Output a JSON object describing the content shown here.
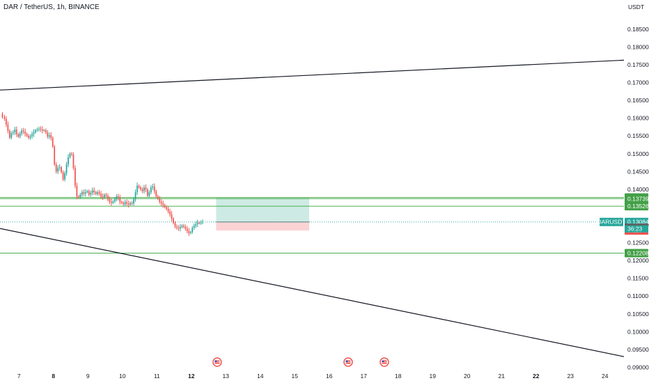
{
  "header": {
    "symbol_title": "DAR / TetherUS, 1h, BINANCE"
  },
  "colors": {
    "up": "#26a69a",
    "down": "#ef5350",
    "trendline": "#131722",
    "level_line": "#4caf50",
    "price_line": "#26a69a",
    "target_zone": "#cdebe4",
    "stop_zone": "#fbd3d5",
    "tag_green": "#43a047",
    "tag_teal": "#26a69a",
    "tag_red": "#ef5350",
    "tag_dark": "#616161"
  },
  "chart_data": {
    "type": "candlestick",
    "currency_label": "USDT",
    "ylim": [
      0.0897,
      0.1932
    ],
    "y_ticks": [
      "0.18500",
      "0.18000",
      "0.17500",
      "0.17000",
      "0.16500",
      "0.16000",
      "0.15500",
      "0.15000",
      "0.14500",
      "0.14000",
      "0.13500",
      "0.13000",
      "0.12500",
      "0.12000",
      "0.11500",
      "0.11000",
      "0.10500",
      "0.10000",
      "0.09500",
      "0.09000"
    ],
    "x_ticks": [
      {
        "label": "7",
        "x": 7,
        "bold": false
      },
      {
        "label": "8",
        "x": 8,
        "bold": true
      },
      {
        "label": "9",
        "x": 9,
        "bold": false
      },
      {
        "label": "10",
        "x": 10,
        "bold": false
      },
      {
        "label": "11",
        "x": 11,
        "bold": false
      },
      {
        "label": "12",
        "x": 12,
        "bold": true
      },
      {
        "label": "13",
        "x": 13,
        "bold": false
      },
      {
        "label": "14",
        "x": 14,
        "bold": false
      },
      {
        "label": "15",
        "x": 15,
        "bold": false
      },
      {
        "label": "16",
        "x": 16,
        "bold": false
      },
      {
        "label": "17",
        "x": 17,
        "bold": false
      },
      {
        "label": "18",
        "x": 18,
        "bold": false
      },
      {
        "label": "19",
        "x": 19,
        "bold": false
      },
      {
        "label": "20",
        "x": 20,
        "bold": false
      },
      {
        "label": "21",
        "x": 21,
        "bold": false
      },
      {
        "label": "22",
        "x": 22,
        "bold": true
      },
      {
        "label": "23",
        "x": 23,
        "bold": false
      },
      {
        "label": "24",
        "x": 24,
        "bold": false
      }
    ],
    "xlim": [
      6.45,
      24.55
    ],
    "candle_points": [
      [
        6.47,
        0.1612
      ],
      [
        6.52,
        0.1603
      ],
      [
        6.58,
        0.1598
      ],
      [
        6.63,
        0.1582
      ],
      [
        6.68,
        0.1565
      ],
      [
        6.73,
        0.1545
      ],
      [
        6.78,
        0.1558
      ],
      [
        6.83,
        0.156
      ],
      [
        6.88,
        0.1568
      ],
      [
        6.93,
        0.1555
      ],
      [
        6.98,
        0.1548
      ],
      [
        7.03,
        0.1557
      ],
      [
        7.08,
        0.1565
      ],
      [
        7.13,
        0.1562
      ],
      [
        7.18,
        0.1556
      ],
      [
        7.23,
        0.155
      ],
      [
        7.28,
        0.1545
      ],
      [
        7.33,
        0.1549
      ],
      [
        7.38,
        0.1555
      ],
      [
        7.43,
        0.156
      ],
      [
        7.48,
        0.1566
      ],
      [
        7.53,
        0.1568
      ],
      [
        7.58,
        0.157
      ],
      [
        7.63,
        0.1568
      ],
      [
        7.68,
        0.1565
      ],
      [
        7.73,
        0.1566
      ],
      [
        7.78,
        0.156
      ],
      [
        7.83,
        0.1548
      ],
      [
        7.88,
        0.1552
      ],
      [
        7.93,
        0.1545
      ],
      [
        7.98,
        0.152
      ],
      [
        8.03,
        0.147
      ],
      [
        8.08,
        0.145
      ],
      [
        8.13,
        0.146
      ],
      [
        8.18,
        0.1462
      ],
      [
        8.23,
        0.1448
      ],
      [
        8.28,
        0.1428
      ],
      [
        8.33,
        0.1445
      ],
      [
        8.38,
        0.147
      ],
      [
        8.43,
        0.149
      ],
      [
        8.48,
        0.15
      ],
      [
        8.53,
        0.1498
      ],
      [
        8.58,
        0.146
      ],
      [
        8.63,
        0.141
      ],
      [
        8.68,
        0.138
      ],
      [
        8.73,
        0.1378
      ],
      [
        8.78,
        0.1385
      ],
      [
        8.83,
        0.1392
      ],
      [
        8.88,
        0.1388
      ],
      [
        8.93,
        0.1392
      ],
      [
        8.98,
        0.1395
      ],
      [
        9.03,
        0.1385
      ],
      [
        9.08,
        0.139
      ],
      [
        9.13,
        0.1397
      ],
      [
        9.18,
        0.1392
      ],
      [
        9.23,
        0.1387
      ],
      [
        9.28,
        0.1392
      ],
      [
        9.33,
        0.1388
      ],
      [
        9.38,
        0.138
      ],
      [
        9.43,
        0.1378
      ],
      [
        9.48,
        0.1385
      ],
      [
        9.53,
        0.1382
      ],
      [
        9.58,
        0.1372
      ],
      [
        9.63,
        0.1365
      ],
      [
        9.68,
        0.1362
      ],
      [
        9.73,
        0.1366
      ],
      [
        9.78,
        0.1372
      ],
      [
        9.83,
        0.138
      ],
      [
        9.88,
        0.1376
      ],
      [
        9.93,
        0.1365
      ],
      [
        9.98,
        0.1362
      ],
      [
        10.03,
        0.1358
      ],
      [
        10.08,
        0.1364
      ],
      [
        10.13,
        0.136
      ],
      [
        10.18,
        0.1357
      ],
      [
        10.23,
        0.1362
      ],
      [
        10.28,
        0.136
      ],
      [
        10.33,
        0.1372
      ],
      [
        10.38,
        0.1392
      ],
      [
        10.43,
        0.141
      ],
      [
        10.48,
        0.1405
      ],
      [
        10.53,
        0.14
      ],
      [
        10.58,
        0.1395
      ],
      [
        10.63,
        0.1405
      ],
      [
        10.68,
        0.14
      ],
      [
        10.73,
        0.1382
      ],
      [
        10.78,
        0.1392
      ],
      [
        10.83,
        0.1405
      ],
      [
        10.88,
        0.1408
      ],
      [
        10.93,
        0.1395
      ],
      [
        10.98,
        0.138
      ],
      [
        11.03,
        0.1375
      ],
      [
        11.08,
        0.1365
      ],
      [
        11.13,
        0.136
      ],
      [
        11.18,
        0.1356
      ],
      [
        11.23,
        0.135
      ],
      [
        11.28,
        0.1345
      ],
      [
        11.33,
        0.1338
      ],
      [
        11.38,
        0.133
      ],
      [
        11.43,
        0.1318
      ],
      [
        11.48,
        0.1305
      ],
      [
        11.53,
        0.1295
      ],
      [
        11.58,
        0.1292
      ],
      [
        11.63,
        0.129
      ],
      [
        11.68,
        0.1294
      ],
      [
        11.73,
        0.1298
      ],
      [
        11.78,
        0.1295
      ],
      [
        11.83,
        0.1289
      ],
      [
        11.88,
        0.1283
      ],
      [
        11.93,
        0.1277
      ],
      [
        11.98,
        0.128
      ],
      [
        12.03,
        0.1292
      ],
      [
        12.08,
        0.1298
      ],
      [
        12.13,
        0.1302
      ],
      [
        12.18,
        0.1306
      ],
      [
        12.23,
        0.1305
      ],
      [
        12.28,
        0.1308
      ],
      [
        12.33,
        0.1309
      ]
    ],
    "trendlines": [
      {
        "x1": 6.45,
        "y1": 0.1679,
        "x2": 24.55,
        "y2": 0.1763
      },
      {
        "x1": 6.45,
        "y1": 0.129,
        "x2": 24.55,
        "y2": 0.093
      }
    ],
    "level_lines": [
      0.13772,
      0.13739,
      0.13526,
      0.12208
    ],
    "current_price": 0.13084,
    "target_zone": {
      "x1": 12.72,
      "x2": 15.42,
      "y_top": 0.13772,
      "y_bottom": 0.13084
    },
    "stop_zone": {
      "x1": 12.72,
      "x2": 15.42,
      "y_top": 0.13084,
      "y_bottom": 0.12844
    },
    "event_markers": [
      12.75,
      16.55,
      17.6
    ],
    "price_tags": [
      {
        "label": "0.13772",
        "value": 0.13772,
        "color": "tag_green"
      },
      {
        "label": "0.13739",
        "value": 0.13739,
        "color": "tag_green"
      },
      {
        "label": "0.13526",
        "value": 0.13526,
        "color": "tag_green"
      },
      {
        "label": "0.13084",
        "value": 0.13084,
        "color": "tag_teal"
      },
      {
        "label": "0.13079",
        "value": 0.13079,
        "color": "tag_dark"
      },
      {
        "label": "0.12844",
        "value": 0.12844,
        "color": "tag_red"
      },
      {
        "label": "0.12208",
        "value": 0.12208,
        "color": "tag_green"
      }
    ],
    "symbol_tag": {
      "label": "DARUSDT",
      "countdown": "36:23"
    }
  }
}
